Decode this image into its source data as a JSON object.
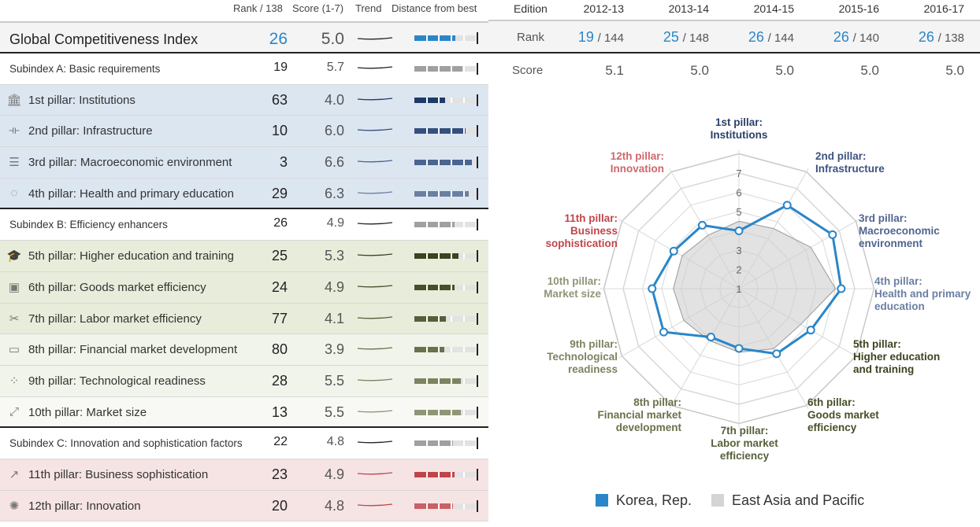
{
  "table": {
    "headers": {
      "rank": "Rank / 138",
      "score": "Score (1-7)",
      "trend": "Trend",
      "distance": "Distance from best"
    },
    "rows": [
      {
        "label": "Global Competitiveness Index",
        "rank": "26",
        "score": "5.0",
        "kind": "gci",
        "icon": "",
        "color": "#2a86c8"
      },
      {
        "label": "Subindex A: Basic requirements",
        "rank": "19",
        "score": "5.7",
        "kind": "sub",
        "icon": "",
        "color": "#a0a0a0"
      },
      {
        "label": "1st pillar: Institutions",
        "rank": "63",
        "score": "4.0",
        "kind": "blue",
        "icon": "building-icon",
        "color": "#1f3a68"
      },
      {
        "label": "2nd pillar: Infrastructure",
        "rank": "10",
        "score": "6.0",
        "kind": "blue",
        "icon": "bridge-icon",
        "color": "#34507c"
      },
      {
        "label": "3rd pillar: Macroeconomic environment",
        "rank": "3",
        "score": "6.6",
        "kind": "blue",
        "icon": "coins-icon",
        "color": "#4a6590"
      },
      {
        "label": "4th pillar: Health and primary education",
        "rank": "29",
        "score": "6.3",
        "kind": "blue",
        "icon": "apple-icon",
        "color": "#6a80a0"
      },
      {
        "label": "Subindex B: Efficiency enhancers",
        "rank": "26",
        "score": "4.9",
        "kind": "sub",
        "icon": "",
        "color": "#a0a0a0"
      },
      {
        "label": "5th pillar: Higher education and training",
        "rank": "25",
        "score": "5.3",
        "kind": "green",
        "icon": "graduation-cap-icon",
        "color": "#3b4420"
      },
      {
        "label": "6th pillar: Goods market efficiency",
        "rank": "24",
        "score": "4.9",
        "kind": "green",
        "icon": "box-icon",
        "color": "#465028"
      },
      {
        "label": "7th pillar: Labor market efficiency",
        "rank": "77",
        "score": "4.1",
        "kind": "green",
        "icon": "worker-icon",
        "color": "#55603a"
      },
      {
        "label": "8th pillar: Financial market development",
        "rank": "80",
        "score": "3.9",
        "kind": "green2",
        "icon": "bank-card-icon",
        "color": "#68724a"
      },
      {
        "label": "9th pillar: Technological readiness",
        "rank": "28",
        "score": "5.5",
        "kind": "green2",
        "icon": "circuit-icon",
        "color": "#7a8460"
      },
      {
        "label": "10th pillar: Market size",
        "rank": "13",
        "score": "5.5",
        "kind": "green3",
        "icon": "expand-icon",
        "color": "#8e9676"
      },
      {
        "label": "Subindex C: Innovation and sophistication factors",
        "rank": "22",
        "score": "4.8",
        "kind": "sub",
        "icon": "",
        "color": "#a0a0a0"
      },
      {
        "label": "11th pillar: Business sophistication",
        "rank": "23",
        "score": "4.9",
        "kind": "red",
        "icon": "growth-chart-icon",
        "color": "#c0454a"
      },
      {
        "label": "12th pillar: Innovation",
        "rank": "20",
        "score": "4.8",
        "kind": "red",
        "icon": "lightbulb-icon",
        "color": "#c96065"
      }
    ]
  },
  "editions": {
    "label": "Edition",
    "rank_label": "Rank",
    "score_label": "Score",
    "items": [
      {
        "year": "2012-13",
        "rank": "19",
        "of": "/ 144",
        "score": "5.1"
      },
      {
        "year": "2013-14",
        "rank": "25",
        "of": "/ 148",
        "score": "5.0"
      },
      {
        "year": "2014-15",
        "rank": "26",
        "of": "/ 144",
        "score": "5.0"
      },
      {
        "year": "2015-16",
        "rank": "26",
        "of": "/ 140",
        "score": "5.0"
      },
      {
        "year": "2016-17",
        "rank": "26",
        "of": "/ 138",
        "score": "5.0"
      }
    ]
  },
  "chart_data": {
    "type": "radar",
    "axis_ticks": [
      "1",
      "2",
      "3",
      "4",
      "5",
      "6",
      "7"
    ],
    "range": [
      1,
      7
    ],
    "axes": [
      {
        "l1": "1st pillar:",
        "l2": "Institutions",
        "l3": "",
        "color": "#2a3f6b"
      },
      {
        "l1": "2nd pillar:",
        "l2": "Infrastructure",
        "l3": "",
        "color": "#3c5380"
      },
      {
        "l1": "3rd pillar:",
        "l2": "Macroeconomic",
        "l3": "environment",
        "color": "#4f6590"
      },
      {
        "l1": "4th pillar:",
        "l2": "Health and primary",
        "l3": "education",
        "color": "#6b80a3"
      },
      {
        "l1": "5th pillar:",
        "l2": "Higher education",
        "l3": "and training",
        "color": "#3b4420"
      },
      {
        "l1": "6th pillar:",
        "l2": "Goods market",
        "l3": "efficiency",
        "color": "#465028"
      },
      {
        "l1": "7th pillar:",
        "l2": "Labor market",
        "l3": "efficiency",
        "color": "#55603a"
      },
      {
        "l1": "8th pillar:",
        "l2": "Financial market",
        "l3": "development",
        "color": "#68724a"
      },
      {
        "l1": "9th pillar:",
        "l2": "Technological",
        "l3": "readiness",
        "color": "#7a8460"
      },
      {
        "l1": "10th pillar:",
        "l2": "Market size",
        "l3": "",
        "color": "#8e9676"
      },
      {
        "l1": "11th pillar:",
        "l2": "Business",
        "l3": "sophistication",
        "color": "#c0454a"
      },
      {
        "l1": "12th pillar:",
        "l2": "Innovation",
        "l3": "",
        "color": "#d0676b"
      }
    ],
    "series": [
      {
        "name": "Korea, Rep.",
        "color": "#2a86c8",
        "values": [
          4.0,
          6.0,
          6.6,
          6.3,
          5.3,
          4.9,
          4.1,
          3.9,
          5.5,
          5.5,
          4.9,
          4.8
        ]
      },
      {
        "name": "East Asia and Pacific",
        "color": "#d4d4d4",
        "values": [
          4.5,
          4.6,
          5.3,
          6.0,
          4.7,
          4.6,
          4.3,
          4.1,
          4.3,
          4.4,
          4.4,
          4.2
        ]
      }
    ]
  }
}
